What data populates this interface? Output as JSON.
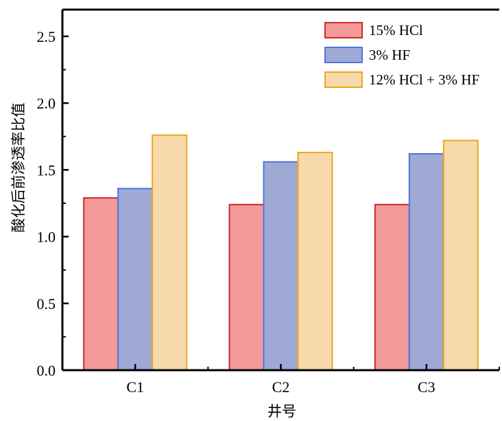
{
  "chart_data": {
    "type": "bar",
    "categories": [
      "C1",
      "C2",
      "C3"
    ],
    "series": [
      {
        "name": "15% HCl",
        "values": [
          1.29,
          1.24,
          1.24
        ],
        "fill": "#f19a99",
        "stroke": "#d2272c"
      },
      {
        "name": "3% HF",
        "values": [
          1.36,
          1.56,
          1.62
        ],
        "fill": "#9eaad4",
        "stroke": "#4d74e6"
      },
      {
        "name": "12% HCl + 3% HF",
        "values": [
          1.76,
          1.63,
          1.72
        ],
        "fill": "#f7d9ab",
        "stroke": "#e8a91c"
      }
    ],
    "xlabel": "井号",
    "ylabel": "酸化后前渗透率比值",
    "ylim": [
      0,
      2.7
    ],
    "yticks": [
      "0.0",
      "0.5",
      "1.0",
      "1.5",
      "2.0",
      "2.5"
    ],
    "legend_position": "top-right",
    "grid": false
  }
}
